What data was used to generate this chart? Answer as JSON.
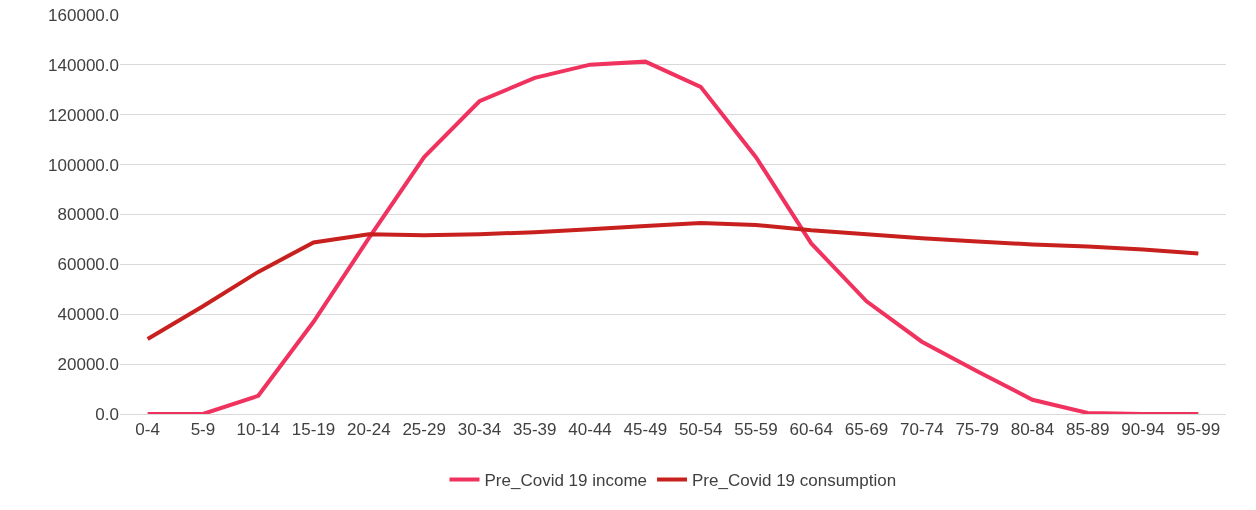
{
  "chart_data": {
    "type": "line",
    "categories": [
      "0-4",
      "5-9",
      "10-14",
      "15-19",
      "20-24",
      "25-29",
      "30-34",
      "35-39",
      "40-44",
      "45-49",
      "50-54",
      "55-59",
      "60-64",
      "65-69",
      "70-74",
      "75-79",
      "80-84",
      "85-89",
      "90-94",
      "95-99"
    ],
    "series": [
      {
        "name": "Pre_Covid 19 income",
        "color": "#f0325f",
        "values": [
          0,
          0,
          7300,
          37000,
          70500,
          103000,
          125400,
          134800,
          140100,
          141300,
          131200,
          103000,
          68400,
          45200,
          29000,
          17100,
          5700,
          400,
          0,
          0
        ]
      },
      {
        "name": "Pre_Covid 19 consumption",
        "color": "#c8201e",
        "values": [
          30100,
          43200,
          57000,
          68800,
          72100,
          71700,
          72100,
          72900,
          74100,
          75400,
          76600,
          75800,
          73700,
          72100,
          70500,
          69200,
          68000,
          67200,
          66000,
          64400
        ]
      }
    ],
    "ylim": [
      0,
      160000
    ],
    "yticks": [
      {
        "value": 0,
        "label": "0.0"
      },
      {
        "value": 20000,
        "label": "20000.0"
      },
      {
        "value": 40000,
        "label": "40000.0"
      },
      {
        "value": 60000,
        "label": "60000.0"
      },
      {
        "value": 80000,
        "label": "80000.0"
      },
      {
        "value": 100000,
        "label": "100000.0"
      },
      {
        "value": 120000,
        "label": "120000.0"
      },
      {
        "value": 140000,
        "label": "140000.0"
      },
      {
        "value": 160000,
        "label": "160000.0"
      }
    ],
    "grid": "y",
    "legend": "bottom",
    "marker": "none",
    "line_style": "solid"
  }
}
